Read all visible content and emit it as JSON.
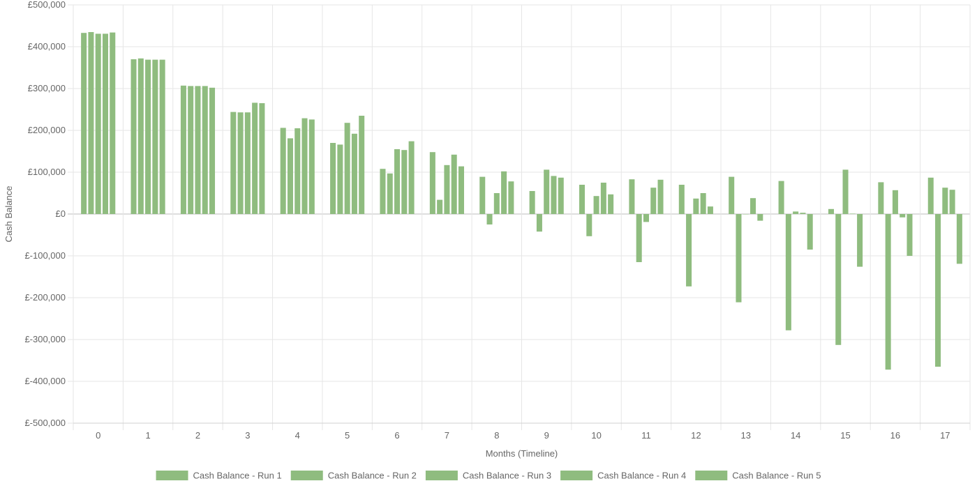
{
  "chart_data": {
    "type": "bar",
    "title": "",
    "xlabel": "Months (Timeline)",
    "ylabel": "Cash Balance",
    "ylim": [
      -500000,
      500000
    ],
    "y_tick_step": 100000,
    "y_tick_labels": [
      "£500,000",
      "£400,000",
      "£300,000",
      "£200,000",
      "£100,000",
      "£0",
      "£-100,000",
      "£-200,000",
      "£-300,000",
      "£-400,000",
      "£-500,000"
    ],
    "grid": true,
    "legend_position": "bottom",
    "bar_color": "#8fbc7f",
    "categories": [
      "0",
      "1",
      "2",
      "3",
      "4",
      "5",
      "6",
      "7",
      "8",
      "9",
      "10",
      "11",
      "12",
      "13",
      "14",
      "15",
      "16",
      "17"
    ],
    "series": [
      {
        "name": "Cash Balance - Run 1",
        "values": [
          433000,
          370000,
          307000,
          244000,
          206000,
          170000,
          108000,
          148000,
          89000,
          55000,
          70000,
          83000,
          70000,
          89000,
          79000,
          12000,
          76000,
          87000
        ]
      },
      {
        "name": "Cash Balance - Run 2",
        "values": [
          435000,
          372000,
          306000,
          243000,
          181000,
          166000,
          97000,
          34000,
          -25000,
          -42000,
          -53000,
          -115000,
          -173000,
          -211000,
          -278000,
          -313000,
          -372000,
          -365000
        ]
      },
      {
        "name": "Cash Balance - Run 3",
        "values": [
          431000,
          369000,
          306000,
          243000,
          205000,
          218000,
          155000,
          117000,
          50000,
          106000,
          43000,
          -19000,
          37000,
          0,
          6000,
          106000,
          57000,
          63000
        ]
      },
      {
        "name": "Cash Balance - Run 4",
        "values": [
          431000,
          369000,
          306000,
          266000,
          229000,
          192000,
          153000,
          142000,
          102000,
          91000,
          75000,
          63000,
          50000,
          38000,
          3000,
          1000,
          -8000,
          58000
        ]
      },
      {
        "name": "Cash Balance - Run 5",
        "values": [
          434000,
          369000,
          302000,
          265000,
          226000,
          235000,
          174000,
          114000,
          78000,
          87000,
          47000,
          82000,
          18000,
          -16000,
          -85000,
          -126000,
          -100000,
          -119000
        ]
      }
    ]
  }
}
